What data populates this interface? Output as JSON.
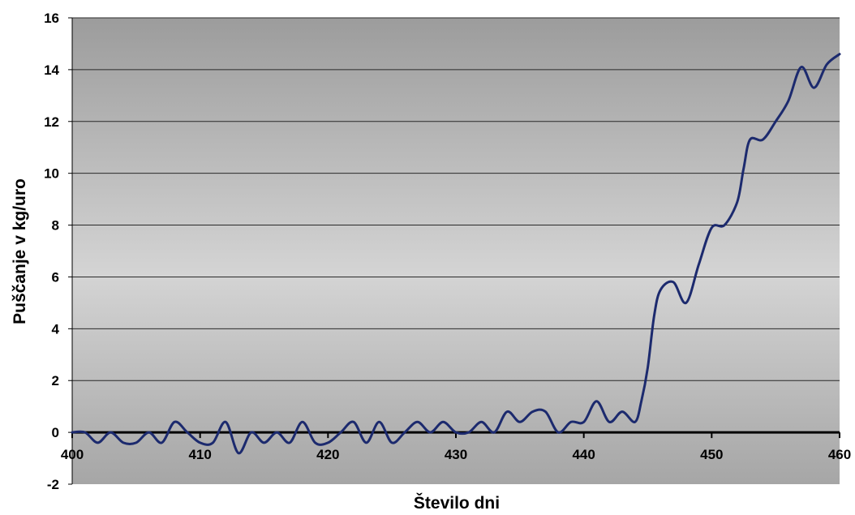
{
  "chart_data": {
    "type": "line",
    "title": "",
    "xlabel": "Število dni",
    "ylabel": "Puščanje v kg/uro",
    "xlim": [
      400,
      460
    ],
    "ylim": [
      -2,
      16
    ],
    "x_ticks": [
      400,
      410,
      420,
      430,
      440,
      450,
      460
    ],
    "y_ticks": [
      -2,
      0,
      2,
      4,
      6,
      8,
      10,
      12,
      14,
      16
    ],
    "grid": "horizontal",
    "background": "vertical gradient grey",
    "line_color": "#1c2a6e",
    "series": [
      {
        "x": [
          400,
          401,
          402,
          403,
          404,
          405,
          406,
          407,
          408,
          409,
          410,
          411,
          412,
          413,
          414,
          415,
          416,
          417,
          418,
          419,
          420,
          421,
          422,
          423,
          424,
          425,
          426,
          427,
          428,
          429,
          430,
          431,
          432,
          433,
          434,
          435,
          436,
          437,
          438,
          439,
          440,
          441,
          442,
          443,
          444,
          444.5,
          445,
          445.5,
          446,
          447,
          448,
          449,
          450,
          451,
          452,
          452.5,
          453,
          454,
          455,
          456,
          457,
          458,
          459,
          460
        ],
        "y": [
          0,
          0,
          -0.4,
          0,
          -0.4,
          -0.4,
          0,
          -0.4,
          0.4,
          0,
          -0.4,
          -0.4,
          0.4,
          -0.8,
          0,
          -0.4,
          0,
          -0.4,
          0.4,
          -0.4,
          -0.4,
          0,
          0.4,
          -0.4,
          0.4,
          -0.4,
          0,
          0.4,
          0,
          0.4,
          0,
          0,
          0.4,
          0,
          0.8,
          0.4,
          0.8,
          0.8,
          0,
          0.4,
          0.4,
          1.2,
          0.4,
          0.8,
          0.4,
          1.2,
          2.5,
          4.5,
          5.5,
          5.8,
          5.0,
          6.5,
          7.9,
          8.0,
          8.9,
          10.2,
          11.3,
          11.3,
          12.0,
          12.8,
          14.1,
          13.3,
          14.2,
          14.6
        ]
      }
    ]
  }
}
